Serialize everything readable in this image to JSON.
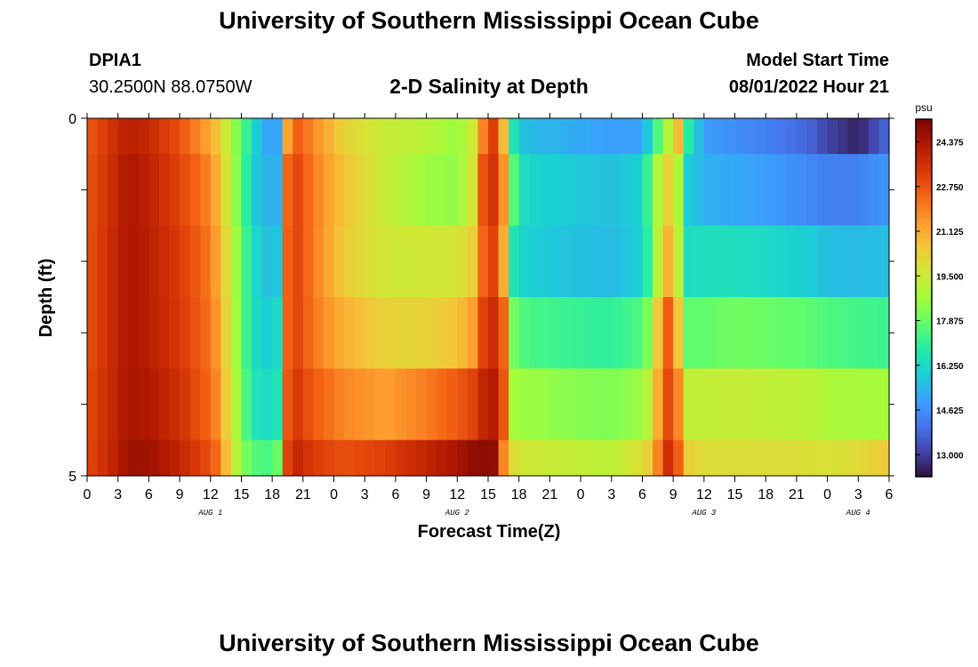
{
  "header": {
    "title": "University of Southern Mississippi Ocean Cube",
    "station_id": "DPIA1",
    "coordinates": "30.2500N  88.0750W",
    "chart_title": "2-D Salinity at Depth",
    "start_label": "Model Start Time",
    "start_value": "08/01/2022 Hour 21"
  },
  "footer": {
    "title": "University of Southern Mississippi Ocean Cube"
  },
  "chart_data": {
    "type": "heatmap",
    "variable": "Salinity",
    "units": "psu",
    "xlabel": "Forecast Time(Z)",
    "ylabel": "Depth (ft)",
    "y_tick_labels": [
      "0",
      "5"
    ],
    "ylim": [
      0,
      5
    ],
    "x_tick_labels": [
      "0",
      "3",
      "6",
      "9",
      "12",
      "15",
      "18",
      "21",
      "0",
      "3",
      "6",
      "9",
      "12",
      "15",
      "18",
      "21",
      "0",
      "3",
      "6",
      "9",
      "12",
      "15",
      "18",
      "21",
      "0",
      "3",
      "6"
    ],
    "x_hours": [
      0,
      78
    ],
    "day_labels": [
      {
        "label": "AUG 1",
        "hour": 12
      },
      {
        "label": "AUG 2",
        "hour": 36
      },
      {
        "label": "AUG 3",
        "hour": 60
      },
      {
        "label": "AUG 4",
        "hour": 75
      }
    ],
    "colorbar": {
      "min": 12.2,
      "max": 25.2,
      "ticks": [
        "24.375",
        "22.750",
        "21.125",
        "19.500",
        "17.875",
        "16.250",
        "14.625",
        "13.000"
      ],
      "tick_values": [
        24.375,
        22.75,
        21.125,
        19.5,
        17.875,
        16.25,
        14.625,
        13.0
      ],
      "colors": [
        "#30123b",
        "#4145ab",
        "#4675ed",
        "#39a2fc",
        "#1bcfd4",
        "#24eca6",
        "#61fc6c",
        "#a4fc3b",
        "#d1e834",
        "#f3c63a",
        "#fe9b2d",
        "#f36315",
        "#d93806",
        "#b11901",
        "#7a0402"
      ]
    },
    "depth_layers": [
      "0-0.5",
      "0.5-1.5",
      "1.5-2.5",
      "2.5-3.5",
      "3.5-4.5",
      "4.5-5"
    ],
    "hour_keys": [
      0,
      2,
      4,
      6,
      9,
      12,
      13,
      14,
      15,
      16,
      17,
      18,
      18.7,
      19.5,
      20.5,
      22,
      25,
      29,
      33,
      36,
      37.5,
      38.5,
      39.5,
      40.5,
      41.5,
      42,
      43,
      46,
      51,
      54,
      55,
      56,
      57,
      57.5,
      58,
      60,
      63,
      66,
      70,
      72,
      75,
      78
    ],
    "salinity": [
      [
        22.6,
        23.4,
        24.1,
        23.8,
        22.8,
        21.2,
        20.2,
        18.8,
        17.8,
        16.5,
        15.3,
        14.8,
        15.2,
        21.3,
        22.5,
        21.8,
        20.2,
        19.4,
        19.2,
        18.5,
        19.6,
        21.9,
        23.2,
        20.8,
        16.5,
        15.8,
        15.5,
        15.3,
        14.9,
        15.0,
        16.5,
        18.5,
        19.5,
        20.8,
        17.5,
        14.9,
        14.6,
        14.3,
        13.8,
        13.1,
        12.5,
        13.9
      ],
      [
        22.7,
        23.5,
        24.4,
        24.0,
        23.1,
        21.8,
        20.5,
        18.9,
        17.8,
        16.0,
        15.5,
        15.1,
        15.4,
        22.4,
        23.0,
        22.0,
        20.6,
        19.4,
        18.6,
        18.4,
        19.7,
        22.8,
        23.5,
        21.6,
        17.6,
        16.5,
        16.1,
        15.9,
        15.6,
        16.0,
        18.2,
        19.8,
        20.6,
        18.9,
        16.1,
        15.3,
        15.1,
        14.9,
        14.5,
        14.3,
        14.3,
        14.8
      ],
      [
        22.8,
        23.6,
        24.4,
        24.1,
        23.3,
        22.0,
        20.9,
        19.2,
        18.0,
        16.4,
        15.8,
        15.5,
        15.8,
        22.5,
        23.0,
        22.0,
        20.4,
        19.6,
        19.6,
        19.7,
        20.3,
        22.4,
        23.1,
        21.1,
        16.6,
        16.1,
        16.0,
        15.7,
        15.5,
        16.0,
        17.8,
        20.5,
        21.4,
        19.2,
        16.3,
        16.4,
        16.4,
        16.2,
        15.9,
        15.6,
        15.5,
        15.6
      ],
      [
        22.8,
        23.6,
        24.4,
        24.1,
        23.4,
        22.1,
        21.1,
        19.3,
        18.0,
        16.4,
        16.1,
        15.8,
        16.4,
        22.5,
        23.0,
        22.1,
        21.0,
        20.2,
        20.2,
        20.6,
        21.4,
        23.1,
        23.7,
        22.4,
        18.0,
        17.6,
        17.4,
        17.2,
        17.0,
        17.5,
        18.8,
        22.2,
        22.9,
        20.6,
        17.7,
        17.8,
        18.0,
        17.9,
        17.7,
        17.5,
        17.3,
        17.2
      ],
      [
        22.9,
        23.7,
        24.4,
        24.3,
        23.6,
        22.3,
        21.4,
        19.4,
        18.2,
        16.6,
        16.4,
        16.1,
        16.8,
        22.7,
        23.3,
        22.6,
        21.8,
        21.4,
        22.0,
        22.6,
        23.1,
        23.9,
        24.2,
        22.7,
        18.7,
        18.6,
        18.6,
        18.4,
        18.2,
        18.6,
        19.6,
        22.6,
        23.3,
        21.8,
        19.3,
        19.3,
        19.4,
        19.3,
        19.2,
        18.9,
        18.8,
        18.7
      ],
      [
        23.0,
        23.7,
        24.6,
        24.6,
        23.9,
        22.8,
        21.9,
        19.7,
        18.5,
        17.6,
        17.5,
        17.3,
        18.1,
        23.1,
        23.8,
        23.3,
        22.8,
        23.2,
        23.9,
        24.4,
        24.8,
        24.9,
        24.8,
        21.8,
        19.9,
        19.6,
        19.6,
        19.4,
        19.2,
        19.9,
        20.6,
        23.2,
        24.0,
        22.5,
        20.5,
        19.9,
        19.9,
        19.9,
        19.9,
        19.8,
        20.0,
        20.5
      ]
    ]
  }
}
